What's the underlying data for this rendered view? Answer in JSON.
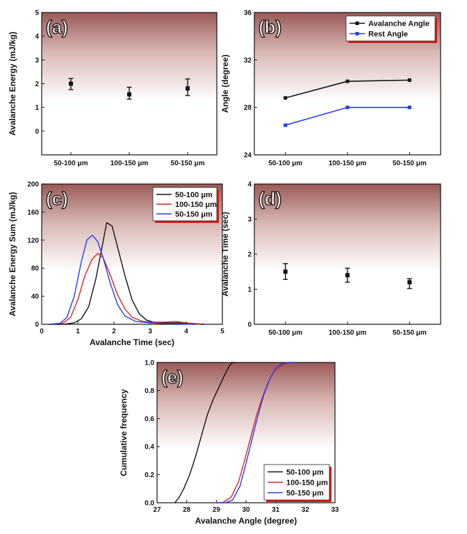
{
  "chart_data": [
    {
      "id": "a",
      "panel_label": "(a)",
      "type": "scatter",
      "ylabel": "Avalanche Energy (mJ/kg)",
      "xlabel": "",
      "categories": [
        "50-100 μm",
        "100-150 μm",
        "50-150 μm"
      ],
      "ylim": [
        -1,
        5
      ],
      "yticks": [
        "0",
        "1",
        "2",
        "3",
        "4",
        "5"
      ],
      "series": [
        {
          "name": "Avalanche Energy",
          "color": "#111111",
          "values": [
            2.0,
            1.55,
            1.8
          ],
          "err_low": [
            1.75,
            1.35,
            1.5
          ],
          "err_high": [
            2.22,
            1.85,
            2.2
          ]
        }
      ]
    },
    {
      "id": "b",
      "panel_label": "(b)",
      "type": "line",
      "ylabel": "Angle (degree)",
      "xlabel": "",
      "categories": [
        "50-100 μm",
        "100-150 μm",
        "50-150 μm"
      ],
      "ylim": [
        24,
        36
      ],
      "yticks": [
        "24",
        "28",
        "32",
        "36"
      ],
      "legend": "top-right",
      "series": [
        {
          "name": "Avalanche Angle",
          "color": "#111111",
          "values": [
            28.8,
            30.2,
            30.3
          ]
        },
        {
          "name": "Rest Angle",
          "color": "#1f3bff",
          "values": [
            26.5,
            28.0,
            28.0
          ]
        }
      ]
    },
    {
      "id": "c",
      "panel_label": "(c)",
      "type": "line",
      "ylabel": "Avalanche Energy Sum (mJ/kg)",
      "xlabel": "Avalanche Time (sec)",
      "xlim": [
        0,
        5
      ],
      "ylim": [
        0,
        200
      ],
      "xticks": [
        "0",
        "1",
        "2",
        "3",
        "4",
        "5"
      ],
      "yticks": [
        "0",
        "40",
        "80",
        "120",
        "160",
        "200"
      ],
      "legend": "top-right",
      "series": [
        {
          "name": "50-100 μm",
          "color": "#111111",
          "x": [
            0.2,
            0.6,
            0.9,
            1.1,
            1.3,
            1.5,
            1.65,
            1.8,
            1.95,
            2.1,
            2.3,
            2.5,
            2.7,
            2.9,
            3.1,
            3.4,
            3.8,
            4.2,
            4.5
          ],
          "y": [
            0,
            0,
            2,
            8,
            25,
            65,
            105,
            145,
            140,
            110,
            70,
            35,
            15,
            6,
            3,
            2,
            2,
            1,
            0
          ]
        },
        {
          "name": "100-150 μm",
          "color": "#e0201b",
          "x": [
            0.2,
            0.6,
            0.8,
            1.0,
            1.2,
            1.4,
            1.55,
            1.7,
            1.9,
            2.1,
            2.3,
            2.5,
            2.8,
            3.1,
            3.4,
            3.7,
            4.0,
            4.4
          ],
          "y": [
            0,
            2,
            10,
            35,
            70,
            93,
            101,
            95,
            70,
            42,
            22,
            10,
            4,
            3,
            3,
            4,
            2,
            0
          ]
        },
        {
          "name": "50-150 μm",
          "color": "#1f3bff",
          "x": [
            0.2,
            0.5,
            0.7,
            0.9,
            1.1,
            1.25,
            1.4,
            1.55,
            1.7,
            1.9,
            2.1,
            2.3,
            2.6,
            3.0,
            3.4,
            3.8,
            4.2
          ],
          "y": [
            0,
            1,
            10,
            40,
            90,
            120,
            127,
            118,
            95,
            58,
            28,
            12,
            4,
            2,
            1,
            1,
            0
          ]
        }
      ]
    },
    {
      "id": "d",
      "panel_label": "(d)",
      "type": "scatter",
      "ylabel": "Avalanche Time (sec)",
      "xlabel": "",
      "categories": [
        "50-100 μm",
        "100-150 μm",
        "50-150 μm"
      ],
      "ylim": [
        0,
        4
      ],
      "yticks": [
        "0",
        "1",
        "2",
        "3",
        "4"
      ],
      "series": [
        {
          "name": "Avalanche Time",
          "color": "#111111",
          "values": [
            1.5,
            1.4,
            1.2
          ],
          "err_low": [
            1.28,
            1.2,
            1.02
          ],
          "err_high": [
            1.73,
            1.6,
            1.3
          ]
        }
      ]
    },
    {
      "id": "e",
      "panel_label": "(e)",
      "type": "line",
      "ylabel": "Cumulative frequency",
      "xlabel": "Avalanche Angle (degree)",
      "xlim": [
        27,
        33
      ],
      "ylim": [
        0,
        1
      ],
      "xticks": [
        "27",
        "28",
        "29",
        "30",
        "31",
        "32",
        "33"
      ],
      "yticks": [
        "0.0",
        "0.2",
        "0.4",
        "0.6",
        "0.8",
        "1.0"
      ],
      "legend": "bottom-right",
      "series": [
        {
          "name": "50-100 μm",
          "color": "#111111",
          "x": [
            27.6,
            27.75,
            27.9,
            28.1,
            28.3,
            28.5,
            28.7,
            28.9,
            29.1,
            29.3,
            29.45,
            29.55,
            29.65
          ],
          "y": [
            0,
            0.04,
            0.1,
            0.2,
            0.33,
            0.48,
            0.63,
            0.74,
            0.83,
            0.92,
            0.98,
            1.0,
            1.0
          ]
        },
        {
          "name": "100-150 μm",
          "color": "#e0201b",
          "x": [
            28.9,
            29.2,
            29.5,
            29.75,
            29.95,
            30.15,
            30.35,
            30.55,
            30.75,
            30.95,
            31.2,
            31.45,
            31.7
          ],
          "y": [
            0,
            0.0,
            0.04,
            0.15,
            0.3,
            0.46,
            0.62,
            0.75,
            0.86,
            0.94,
            0.98,
            1.0,
            1.0
          ]
        },
        {
          "name": "50-150 μm",
          "color": "#1f3bff",
          "x": [
            29.0,
            29.3,
            29.55,
            29.8,
            30.0,
            30.2,
            30.4,
            30.6,
            30.8,
            31.0,
            31.2,
            31.4,
            31.7
          ],
          "y": [
            0,
            0.0,
            0.02,
            0.12,
            0.28,
            0.45,
            0.62,
            0.77,
            0.88,
            0.96,
            0.99,
            1.0,
            1.0
          ]
        }
      ]
    }
  ]
}
